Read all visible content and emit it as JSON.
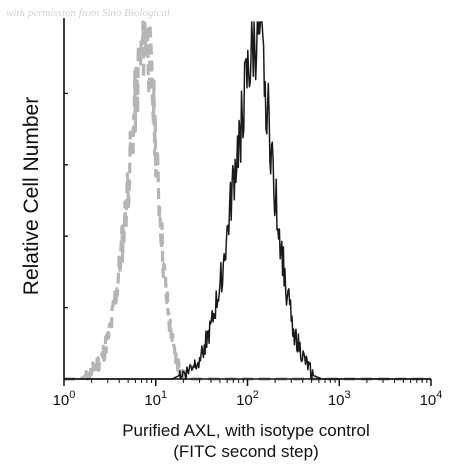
{
  "watermark": "with permission from Sino Biological",
  "chart_data": {
    "type": "line",
    "title": "",
    "xlabel_lines": [
      "Purified AXL, with isotype control",
      "(FITC second step)"
    ],
    "ylabel": "Relative Cell Number",
    "x_scale": "log",
    "xlim": [
      1,
      10000
    ],
    "x_ticks": [
      {
        "value": 1,
        "base": "10",
        "exp": "0"
      },
      {
        "value": 10,
        "base": "10",
        "exp": "1"
      },
      {
        "value": 100,
        "base": "10",
        "exp": "2"
      },
      {
        "value": 1000,
        "base": "10",
        "exp": "3"
      },
      {
        "value": 10000,
        "base": "10",
        "exp": "4"
      }
    ],
    "ylim": [
      0,
      100
    ],
    "y_tick_labels_shown": false,
    "y_ticks": [
      0,
      20,
      40,
      60,
      80
    ],
    "grid": false,
    "legend": "none",
    "series": [
      {
        "style": "dashed",
        "color": "#b5b5b5",
        "x": [
          1.5,
          2.0,
          2.6,
          3.2,
          3.8,
          4.5,
          5.0,
          5.5,
          6.0,
          6.5,
          7.0,
          7.4,
          7.8,
          8.2,
          8.7,
          9.2,
          9.8,
          10.5,
          11.5,
          12.5,
          14,
          16,
          19,
          24
        ],
        "y": [
          0,
          2,
          6,
          14,
          26,
          42,
          55,
          66,
          78,
          86,
          91,
          95,
          97,
          93,
          88,
          80,
          70,
          56,
          42,
          28,
          16,
          7,
          2,
          0
        ]
      },
      {
        "style": "solid",
        "color": "#1a1a1a",
        "x": [
          15,
          22,
          30,
          40,
          50,
          60,
          70,
          80,
          90,
          100,
          110,
          120,
          130,
          140,
          150,
          165,
          180,
          200,
          230,
          270,
          330,
          420,
          520,
          650
        ],
        "y": [
          0,
          2,
          6,
          14,
          26,
          40,
          55,
          66,
          76,
          84,
          90,
          94,
          96,
          92,
          86,
          76,
          65,
          52,
          38,
          24,
          12,
          5,
          1,
          0
        ]
      }
    ]
  }
}
